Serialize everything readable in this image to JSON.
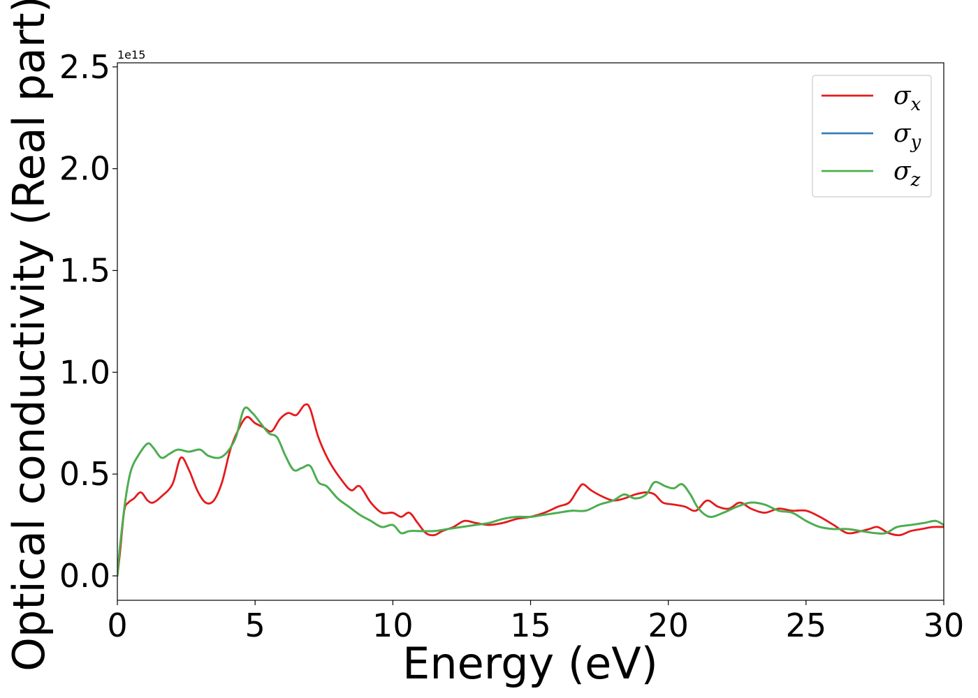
{
  "chart_data": {
    "type": "line",
    "xlabel": "Energy (eV)",
    "ylabel": "Optical conductivity (Real part)",
    "y_offset_label": "1e15",
    "xlim": [
      0,
      30
    ],
    "ylim": [
      -0.12,
      2.52
    ],
    "xticks": [
      0,
      5,
      10,
      15,
      20,
      25,
      30
    ],
    "yticks": [
      0.0,
      0.5,
      1.0,
      1.5,
      2.0,
      2.5
    ],
    "xtick_labels": [
      "0",
      "5",
      "10",
      "15",
      "20",
      "25",
      "30"
    ],
    "ytick_labels": [
      "0.0",
      "0.5",
      "1.0",
      "1.5",
      "2.0",
      "2.5"
    ],
    "grid": false,
    "legend_position": "top-right",
    "legend": [
      {
        "symbol": "σ",
        "sub": "x",
        "color": "#e41a1c"
      },
      {
        "symbol": "σ",
        "sub": "y",
        "color": "#377eb8"
      },
      {
        "symbol": "σ",
        "sub": "z",
        "color": "#4daf4a"
      }
    ],
    "series": [
      {
        "name": "σx",
        "color": "#e41a1c",
        "x": [
          0,
          0.1,
          0.25,
          0.4,
          0.6,
          0.85,
          1.1,
          1.3,
          1.6,
          2.0,
          2.3,
          2.6,
          2.9,
          3.2,
          3.5,
          3.8,
          4.1,
          4.4,
          4.7,
          5.0,
          5.3,
          5.6,
          5.9,
          6.2,
          6.5,
          6.8,
          7.0,
          7.3,
          7.7,
          8.2,
          8.5,
          8.8,
          9.2,
          9.6,
          10.0,
          10.3,
          10.6,
          10.9,
          11.2,
          11.5,
          11.8,
          12.2,
          12.6,
          13.0,
          13.5,
          14.0,
          14.5,
          15.0,
          15.5,
          16.0,
          16.4,
          16.7,
          16.9,
          17.2,
          17.6,
          18.0,
          18.4,
          18.8,
          19.2,
          19.5,
          19.8,
          20.2,
          20.6,
          21.0,
          21.4,
          21.8,
          22.2,
          22.6,
          23.0,
          23.5,
          24.0,
          24.5,
          25.0,
          25.5,
          26.0,
          26.5,
          27.0,
          27.3,
          27.6,
          28.0,
          28.4,
          28.8,
          29.2,
          29.6,
          30.0
        ],
        "y": [
          0.0,
          0.12,
          0.32,
          0.36,
          0.38,
          0.41,
          0.37,
          0.36,
          0.39,
          0.45,
          0.58,
          0.52,
          0.42,
          0.36,
          0.37,
          0.46,
          0.62,
          0.72,
          0.78,
          0.75,
          0.73,
          0.71,
          0.77,
          0.8,
          0.79,
          0.84,
          0.82,
          0.68,
          0.56,
          0.46,
          0.42,
          0.44,
          0.36,
          0.31,
          0.31,
          0.29,
          0.31,
          0.26,
          0.21,
          0.2,
          0.22,
          0.24,
          0.27,
          0.26,
          0.25,
          0.26,
          0.28,
          0.29,
          0.31,
          0.34,
          0.36,
          0.42,
          0.45,
          0.42,
          0.39,
          0.37,
          0.38,
          0.4,
          0.41,
          0.4,
          0.36,
          0.35,
          0.34,
          0.32,
          0.37,
          0.34,
          0.33,
          0.36,
          0.33,
          0.31,
          0.33,
          0.32,
          0.32,
          0.29,
          0.25,
          0.21,
          0.22,
          0.23,
          0.24,
          0.21,
          0.2,
          0.22,
          0.23,
          0.24,
          0.24
        ]
      },
      {
        "name": "σy",
        "color": "#377eb8",
        "x": [
          0,
          0.1,
          0.3,
          0.5,
          0.8,
          1.1,
          1.3,
          1.6,
          1.9,
          2.2,
          2.6,
          3.0,
          3.3,
          3.7,
          4.0,
          4.3,
          4.6,
          4.9,
          5.2,
          5.5,
          5.8,
          6.1,
          6.4,
          6.7,
          7.0,
          7.3,
          7.6,
          8.0,
          8.4,
          8.8,
          9.2,
          9.6,
          10.0,
          10.3,
          10.6,
          11.0,
          11.5,
          12.0,
          12.5,
          13.0,
          13.5,
          14.0,
          14.5,
          15.0,
          15.5,
          16.0,
          16.5,
          17.0,
          17.5,
          18.0,
          18.4,
          18.8,
          19.2,
          19.5,
          19.9,
          20.2,
          20.5,
          20.8,
          21.1,
          21.5,
          22.0,
          22.5,
          23.0,
          23.5,
          24.0,
          24.5,
          25.0,
          25.5,
          26.0,
          26.5,
          27.0,
          27.5,
          27.9,
          28.3,
          28.8,
          29.3,
          29.7,
          30.0
        ],
        "y": [
          0.0,
          0.15,
          0.38,
          0.52,
          0.6,
          0.65,
          0.63,
          0.58,
          0.6,
          0.62,
          0.61,
          0.62,
          0.59,
          0.58,
          0.61,
          0.68,
          0.82,
          0.8,
          0.75,
          0.7,
          0.68,
          0.59,
          0.52,
          0.53,
          0.54,
          0.46,
          0.44,
          0.38,
          0.34,
          0.3,
          0.27,
          0.24,
          0.25,
          0.21,
          0.22,
          0.22,
          0.22,
          0.23,
          0.24,
          0.25,
          0.26,
          0.28,
          0.29,
          0.29,
          0.3,
          0.31,
          0.32,
          0.32,
          0.35,
          0.37,
          0.4,
          0.38,
          0.4,
          0.46,
          0.44,
          0.43,
          0.45,
          0.4,
          0.33,
          0.29,
          0.31,
          0.34,
          0.36,
          0.35,
          0.32,
          0.31,
          0.27,
          0.24,
          0.23,
          0.23,
          0.22,
          0.21,
          0.21,
          0.24,
          0.25,
          0.26,
          0.27,
          0.25
        ]
      },
      {
        "name": "σz",
        "color": "#4daf4a",
        "x": [
          0,
          0.1,
          0.3,
          0.5,
          0.8,
          1.1,
          1.3,
          1.6,
          1.9,
          2.2,
          2.6,
          3.0,
          3.3,
          3.7,
          4.0,
          4.3,
          4.6,
          4.9,
          5.2,
          5.5,
          5.8,
          6.1,
          6.4,
          6.7,
          7.0,
          7.3,
          7.6,
          8.0,
          8.4,
          8.8,
          9.2,
          9.6,
          10.0,
          10.3,
          10.6,
          11.0,
          11.5,
          12.0,
          12.5,
          13.0,
          13.5,
          14.0,
          14.5,
          15.0,
          15.5,
          16.0,
          16.5,
          17.0,
          17.5,
          18.0,
          18.4,
          18.8,
          19.2,
          19.5,
          19.9,
          20.2,
          20.5,
          20.8,
          21.1,
          21.5,
          22.0,
          22.5,
          23.0,
          23.5,
          24.0,
          24.5,
          25.0,
          25.5,
          26.0,
          26.5,
          27.0,
          27.5,
          27.9,
          28.3,
          28.8,
          29.3,
          29.7,
          30.0
        ],
        "y": [
          0.0,
          0.15,
          0.38,
          0.52,
          0.6,
          0.65,
          0.63,
          0.58,
          0.6,
          0.62,
          0.61,
          0.62,
          0.59,
          0.58,
          0.61,
          0.68,
          0.82,
          0.8,
          0.75,
          0.7,
          0.68,
          0.59,
          0.52,
          0.53,
          0.54,
          0.46,
          0.44,
          0.38,
          0.34,
          0.3,
          0.27,
          0.24,
          0.25,
          0.21,
          0.22,
          0.22,
          0.22,
          0.23,
          0.24,
          0.25,
          0.26,
          0.28,
          0.29,
          0.29,
          0.3,
          0.31,
          0.32,
          0.32,
          0.35,
          0.37,
          0.4,
          0.38,
          0.4,
          0.46,
          0.44,
          0.43,
          0.45,
          0.4,
          0.33,
          0.29,
          0.31,
          0.34,
          0.36,
          0.35,
          0.32,
          0.31,
          0.27,
          0.24,
          0.23,
          0.23,
          0.22,
          0.21,
          0.21,
          0.24,
          0.25,
          0.26,
          0.27,
          0.25
        ]
      }
    ]
  }
}
